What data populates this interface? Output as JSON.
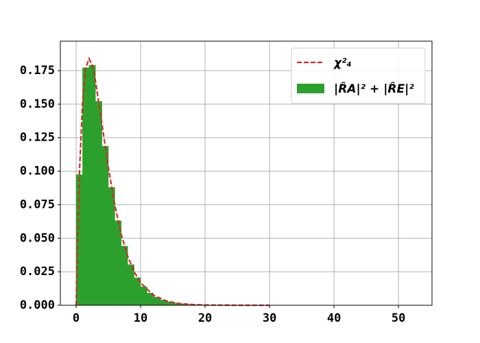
{
  "chart_data": {
    "type": "histogram",
    "histogram": {
      "name": "|R̂A|² + |R̂E|²",
      "color": "#2ca02c",
      "bins": [
        0,
        1,
        2,
        3,
        4,
        5,
        6,
        7,
        8,
        9,
        10,
        11,
        12,
        13,
        14,
        15,
        16,
        17,
        18,
        19,
        20
      ],
      "counts": [
        0.0974,
        0.1771,
        0.1791,
        0.1521,
        0.1186,
        0.0879,
        0.063,
        0.0441,
        0.0303,
        0.0205,
        0.0138,
        0.0091,
        0.006,
        0.0039,
        0.0026,
        0.0017,
        0.0011,
        0.0007,
        0.0004,
        0.0003
      ]
    },
    "line": {
      "name": "χ²₄",
      "color": "#d62728",
      "dashed": true,
      "x": [
        0,
        0.5,
        1,
        1.5,
        2,
        2.5,
        3,
        4,
        5,
        6,
        7,
        8,
        9,
        10,
        12,
        14,
        16,
        18,
        20,
        25,
        30
      ],
      "values": [
        0,
        0.0974,
        0.1516,
        0.1771,
        0.1839,
        0.1791,
        0.1673,
        0.1353,
        0.1026,
        0.0747,
        0.0528,
        0.0366,
        0.025,
        0.0168,
        0.0074,
        0.0032,
        0.0013,
        0.0006,
        0.0002,
        0,
        0
      ]
    },
    "xlim": [
      -2.45,
      55.2
    ],
    "ylim": [
      0,
      0.197
    ],
    "xticks": [
      0,
      10,
      20,
      30,
      40,
      50
    ],
    "yticks": [
      {
        "value": 0,
        "label": "0.000"
      },
      {
        "value": 0.025,
        "label": "0.025"
      },
      {
        "value": 0.05,
        "label": "0.050"
      },
      {
        "value": 0.075,
        "label": "0.075"
      },
      {
        "value": 0.1,
        "label": "0.100"
      },
      {
        "value": 0.125,
        "label": "0.125"
      },
      {
        "value": 0.15,
        "label": "0.150"
      },
      {
        "value": 0.175,
        "label": "0.175"
      }
    ],
    "grid": true,
    "legend": "upper right"
  }
}
